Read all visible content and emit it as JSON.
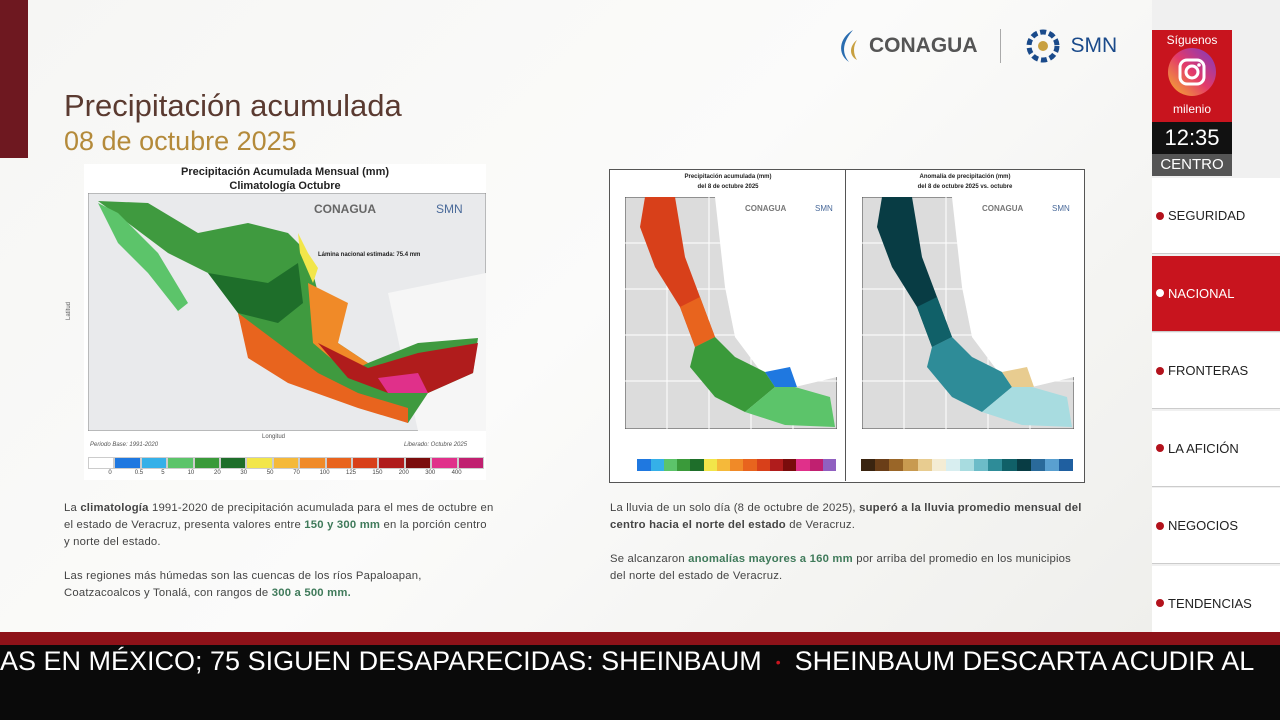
{
  "slide": {
    "logos": {
      "conagua": "CONAGUA",
      "smn": "SMN"
    },
    "title": "Precipitación acumulada",
    "date": "08 de octubre 2025",
    "left_map": {
      "title": "Precipitación Acumulada Mensual (mm)",
      "subtitle": "Climatología Octubre",
      "note": "Lámina nacional estimada: 75.4 mm",
      "x_label": "Longitud",
      "y_label": "Latitud",
      "base_period": "Periodo Base: 1991-2020",
      "released": "Liberado: Octubre 2025",
      "colorbar": {
        "colors": [
          "#ffffff",
          "#1f78e0",
          "#35b0e8",
          "#5cc46a",
          "#3a9a3a",
          "#1e6e2a",
          "#f2e64a",
          "#f5b93a",
          "#f08a28",
          "#e8641e",
          "#d8401a",
          "#b01c1c",
          "#7a0c0c",
          "#e0308a",
          "#c02070"
        ],
        "labels": [
          "0",
          "0.5",
          "5",
          "10",
          "20",
          "30",
          "50",
          "70",
          "100",
          "125",
          "150",
          "200",
          "300",
          "400"
        ]
      }
    },
    "left_paragraphs": [
      [
        {
          "text": "La ",
          "bold": false
        },
        {
          "text": "climatología",
          "bold": true
        },
        {
          "text": " 1991-2020 de precipitación acumulada para el mes de octubre en el estado de Veracruz, presenta valores entre ",
          "bold": false
        },
        {
          "text": "150 y 300 mm",
          "bold": true,
          "color": "#3f7a5a"
        },
        {
          "text": " en la porción centro y norte del estado.",
          "bold": false
        }
      ],
      [
        {
          "text": "Las regiones más húmedas son las cuencas de los ríos Papaloapan, Coatzacoalcos y Tonalá, con rangos de ",
          "bold": false
        },
        {
          "text": "300 a 500 mm.",
          "bold": true,
          "color": "#3f7a5a"
        }
      ]
    ],
    "right_maps": [
      {
        "title": "Precipitación acumulada (mm)",
        "subtitle": "del 8 de octubre 2025",
        "colorbar": [
          "#ffffff",
          "#1f78e0",
          "#35b0e8",
          "#5cc46a",
          "#3a9a3a",
          "#1e6e2a",
          "#f2e64a",
          "#f5b93a",
          "#f08a28",
          "#e8641e",
          "#d8401a",
          "#b01c1c",
          "#7a0c0c",
          "#e0308a",
          "#c02070",
          "#9060c0"
        ]
      },
      {
        "title": "Anomalía de precipitación (mm)",
        "subtitle": "del 8 de octubre 2025 vs. octubre",
        "colorbar": [
          "#3a2410",
          "#6a3e18",
          "#9a6628",
          "#c89a50",
          "#e8cc90",
          "#f4ecd4",
          "#d8eef0",
          "#a8dce0",
          "#6cbcc8",
          "#2e8c98",
          "#106068",
          "#083c44",
          "#2a6a9a",
          "#5aa0d0",
          "#1f5fa0"
        ]
      }
    ],
    "right_paragraphs": [
      [
        {
          "text": "La lluvia de un solo día (8 de octubre de 2025), ",
          "bold": false
        },
        {
          "text": "superó a la lluvia promedio mensual del centro hacia el norte del estado",
          "bold": true
        },
        {
          "text": " de Veracruz.",
          "bold": false
        }
      ],
      [
        {
          "text": "Se alcanzaron ",
          "bold": false
        },
        {
          "text": "anomalías mayores a 160 mm",
          "bold": true,
          "color": "#3f7a5a"
        },
        {
          "text": " por arriba del promedio en los municipios del norte del estado de Veracruz.",
          "bold": false
        }
      ]
    ]
  },
  "sidebar": {
    "follow": "Síguenos",
    "brand": "milenio",
    "time": "12:35",
    "region": "CENTRO",
    "menu": [
      {
        "label": "SEGURIDAD",
        "active": false
      },
      {
        "label": "NACIONAL",
        "active": true
      },
      {
        "label": "FRONTERAS",
        "active": false
      },
      {
        "label": "LA AFICIÓN",
        "active": false
      },
      {
        "label": "NEGOCIOS",
        "active": false
      },
      {
        "label": "TENDENCIAS",
        "active": false
      }
    ]
  },
  "ticker": [
    "AS EN MÉXICO; 75 SIGUEN DESAPARECIDAS: SHEINBAUM",
    "SHEINBAUM DESCARTA ACUDIR AL"
  ]
}
